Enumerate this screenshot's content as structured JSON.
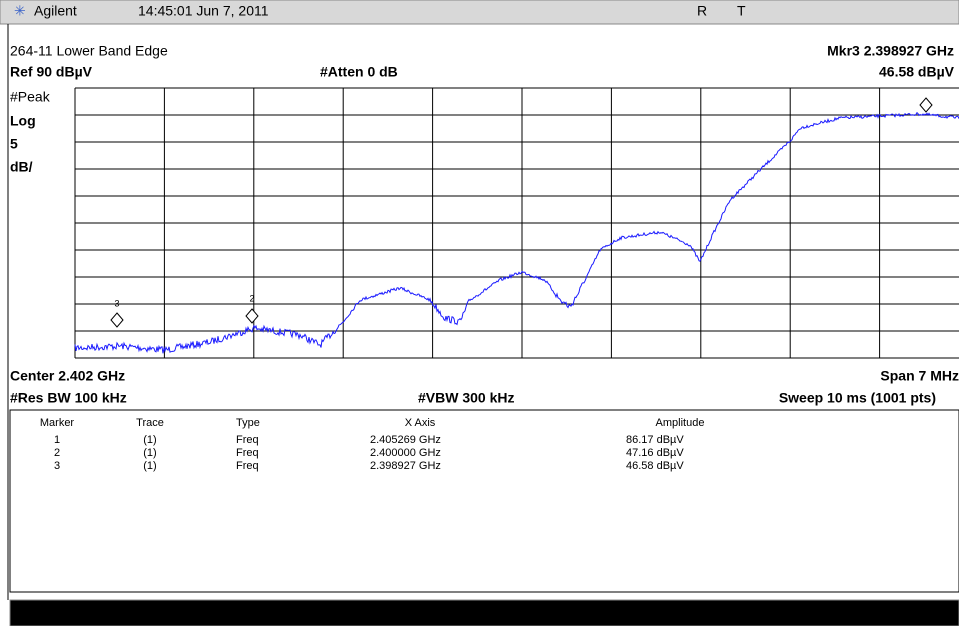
{
  "title_bar": {
    "brand": "Agilent",
    "datetime": "14:45:01  Jun 7, 2011",
    "status_r": "R",
    "status_t": "T"
  },
  "header": {
    "title": "264-11 Lower Band Edge",
    "marker_freq": "Mkr3  2.398927 GHz",
    "ref": "Ref 90 dBµV",
    "atten": "#Atten 0 dB",
    "marker_amp": "46.58 dBµV"
  },
  "left_labels": [
    "#Peak",
    "Log",
    "5",
    "dB/"
  ],
  "footer": {
    "center": "Center 2.402 GHz",
    "span": "Span 7 MHz",
    "rbw": "#Res BW 100 kHz",
    "vbw": "#VBW 300 kHz",
    "sweep": "Sweep 10 ms (1001 pts)"
  },
  "table": {
    "columns": [
      "Marker",
      "Trace",
      "Type",
      "X Axis",
      "Amplitude"
    ],
    "rows": [
      [
        "1",
        "(1)",
        "Freq",
        "2.405269 GHz",
        "86.17 dBµV"
      ],
      [
        "2",
        "(1)",
        "Freq",
        "2.400000 GHz",
        "47.16 dBµV"
      ],
      [
        "3",
        "(1)",
        "Freq",
        "2.398927 GHz",
        "46.58 dBµV"
      ]
    ]
  }
}
